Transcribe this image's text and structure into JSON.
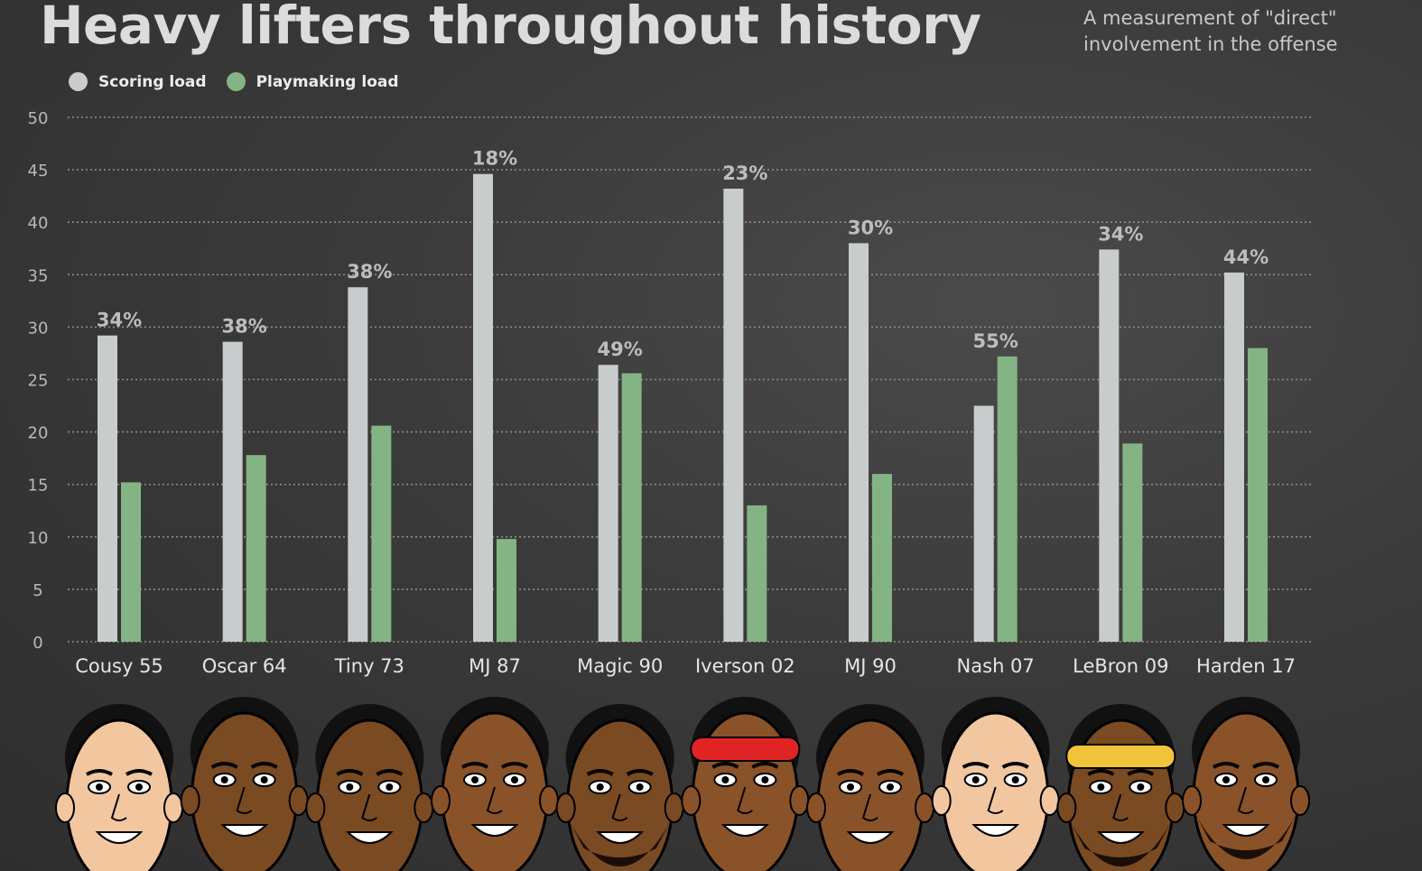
{
  "header": {
    "title": "Heavy lifters throughout history",
    "subtitle": "A measurement of \"direct\" involvement in the offense"
  },
  "legend": [
    {
      "label": "Scoring load",
      "color": "#c9cccc"
    },
    {
      "label": "Playmaking load",
      "color": "#84b483"
    }
  ],
  "chart_data": {
    "type": "bar",
    "categories": [
      "Cousy 55",
      "Oscar 64",
      "Tiny 73",
      "MJ 87",
      "Magic 90",
      "Iverson 02",
      "MJ 90",
      "Nash 07",
      "LeBron 09",
      "Harden 17"
    ],
    "series": [
      {
        "name": "Scoring load",
        "color": "#c9cccc",
        "values": [
          29.2,
          28.6,
          33.8,
          44.6,
          26.4,
          43.2,
          38.0,
          22.5,
          37.4,
          35.2
        ]
      },
      {
        "name": "Playmaking load",
        "color": "#84b483",
        "values": [
          15.2,
          17.8,
          20.6,
          9.8,
          25.6,
          13.0,
          16.0,
          27.2,
          18.9,
          28.0
        ]
      }
    ],
    "annotations": [
      "34%",
      "38%",
      "38%",
      "18%",
      "49%",
      "23%",
      "30%",
      "55%",
      "34%",
      "44%"
    ],
    "ylim": [
      0,
      50
    ],
    "yticks": [
      "0",
      "5",
      "10",
      "15",
      "20",
      "25",
      "30",
      "35",
      "40",
      "45",
      "50"
    ],
    "grid": true,
    "legend_position": "top-left"
  },
  "illustrations": {
    "row_icon": "player-caricature-icon",
    "skin_colors": [
      "#f2c7a0",
      "#7a4a22",
      "#7a4a22",
      "#8a5228",
      "#7a4a22",
      "#8a5228",
      "#8a5228",
      "#f2c7a0",
      "#7a4a22",
      "#8a5228"
    ],
    "headband_colors": [
      "",
      "",
      "",
      "",
      "",
      "#e02424",
      "",
      "",
      "#f0c33a",
      ""
    ]
  }
}
